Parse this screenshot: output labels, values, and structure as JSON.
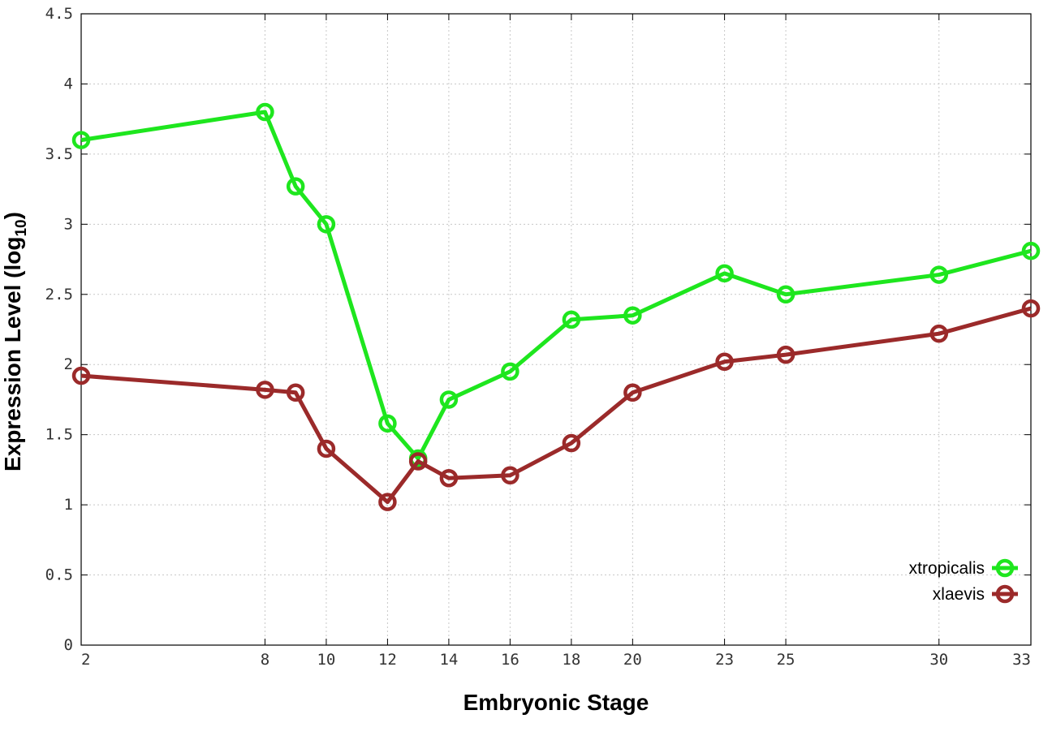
{
  "chart_data": {
    "type": "line",
    "xlabel": "Embryonic Stage",
    "ylabel_main": "Expression Level (log",
    "ylabel_sub": "10",
    "ylabel_close": ")",
    "ylim": [
      0,
      4.5
    ],
    "yticks": [
      0,
      0.5,
      1,
      1.5,
      2,
      2.5,
      3,
      3.5,
      4,
      4.5
    ],
    "ytick_labels": [
      "0",
      "0.5",
      "1",
      "1.5",
      "2",
      "2.5",
      "3",
      "3.5",
      "4",
      "4.5"
    ],
    "x": [
      2,
      8,
      9,
      10,
      12,
      13,
      14,
      16,
      18,
      20,
      23,
      25,
      30,
      33
    ],
    "xticks": [
      2,
      8,
      10,
      12,
      14,
      16,
      18,
      20,
      23,
      25,
      30,
      33
    ],
    "xtick_labels": [
      "2",
      "8",
      "10",
      "12",
      "14",
      "16",
      "18",
      "20",
      "23",
      "25",
      "30",
      "33"
    ],
    "grid": true,
    "legend_position": "bottom-right",
    "series": [
      {
        "name": "xtropicalis",
        "color": "#1ee61e",
        "values": [
          3.6,
          3.8,
          3.27,
          3.0,
          1.58,
          1.33,
          1.75,
          1.95,
          2.32,
          2.35,
          2.65,
          2.5,
          2.64,
          2.81
        ]
      },
      {
        "name": "xlaevis",
        "color": "#9b2a2a",
        "values": [
          1.92,
          1.82,
          1.8,
          1.4,
          1.02,
          1.31,
          1.19,
          1.21,
          1.44,
          1.8,
          2.02,
          2.07,
          2.22,
          2.4
        ]
      }
    ]
  }
}
